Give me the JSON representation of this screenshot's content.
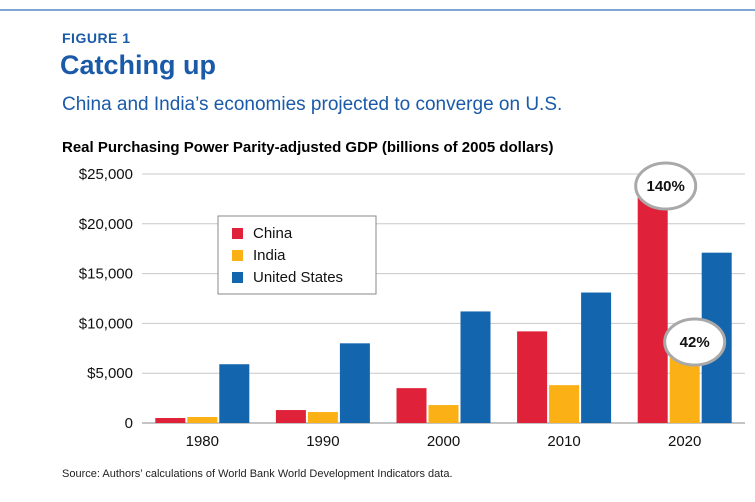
{
  "figure": {
    "label": "FIGURE 1",
    "title": "Catching up",
    "subtitle": "China and India’s economies projected to converge on U.S.",
    "source": "Source: Authors’ calculations of World Bank World Development Indicators data."
  },
  "colors": {
    "heading": "#1a5aa8",
    "china": "#e0213a",
    "india": "#fbb116",
    "us": "#1366ad"
  },
  "chart_data": {
    "type": "bar",
    "title": "Real Purchasing Power Parity-adjusted GDP (billions of 2005 dollars)",
    "xlabel": "",
    "ylabel": "",
    "categories": [
      "1980",
      "1990",
      "2000",
      "2010",
      "2020"
    ],
    "series": [
      {
        "name": "China",
        "color": "#e0213a",
        "values": [
          500,
          1300,
          3500,
          9200,
          23000
        ]
      },
      {
        "name": "India",
        "color": "#fbb116",
        "values": [
          600,
          1100,
          1800,
          3800,
          6700
        ]
      },
      {
        "name": "United States",
        "color": "#1366ad",
        "values": [
          5900,
          8000,
          11200,
          13100,
          17100
        ]
      }
    ],
    "ylim": [
      0,
      25000
    ],
    "yticks": [
      0,
      5000,
      10000,
      15000,
      20000,
      25000
    ],
    "ytick_labels": [
      "0",
      "$5,000",
      "$10,000",
      "$15,000",
      "$20,000",
      "$25,000"
    ],
    "grid": true,
    "legend": "upper-left",
    "annotations": [
      {
        "text": "140%",
        "category": "2020",
        "series": "China"
      },
      {
        "text": "42%",
        "category": "2020",
        "series": "India"
      }
    ]
  }
}
